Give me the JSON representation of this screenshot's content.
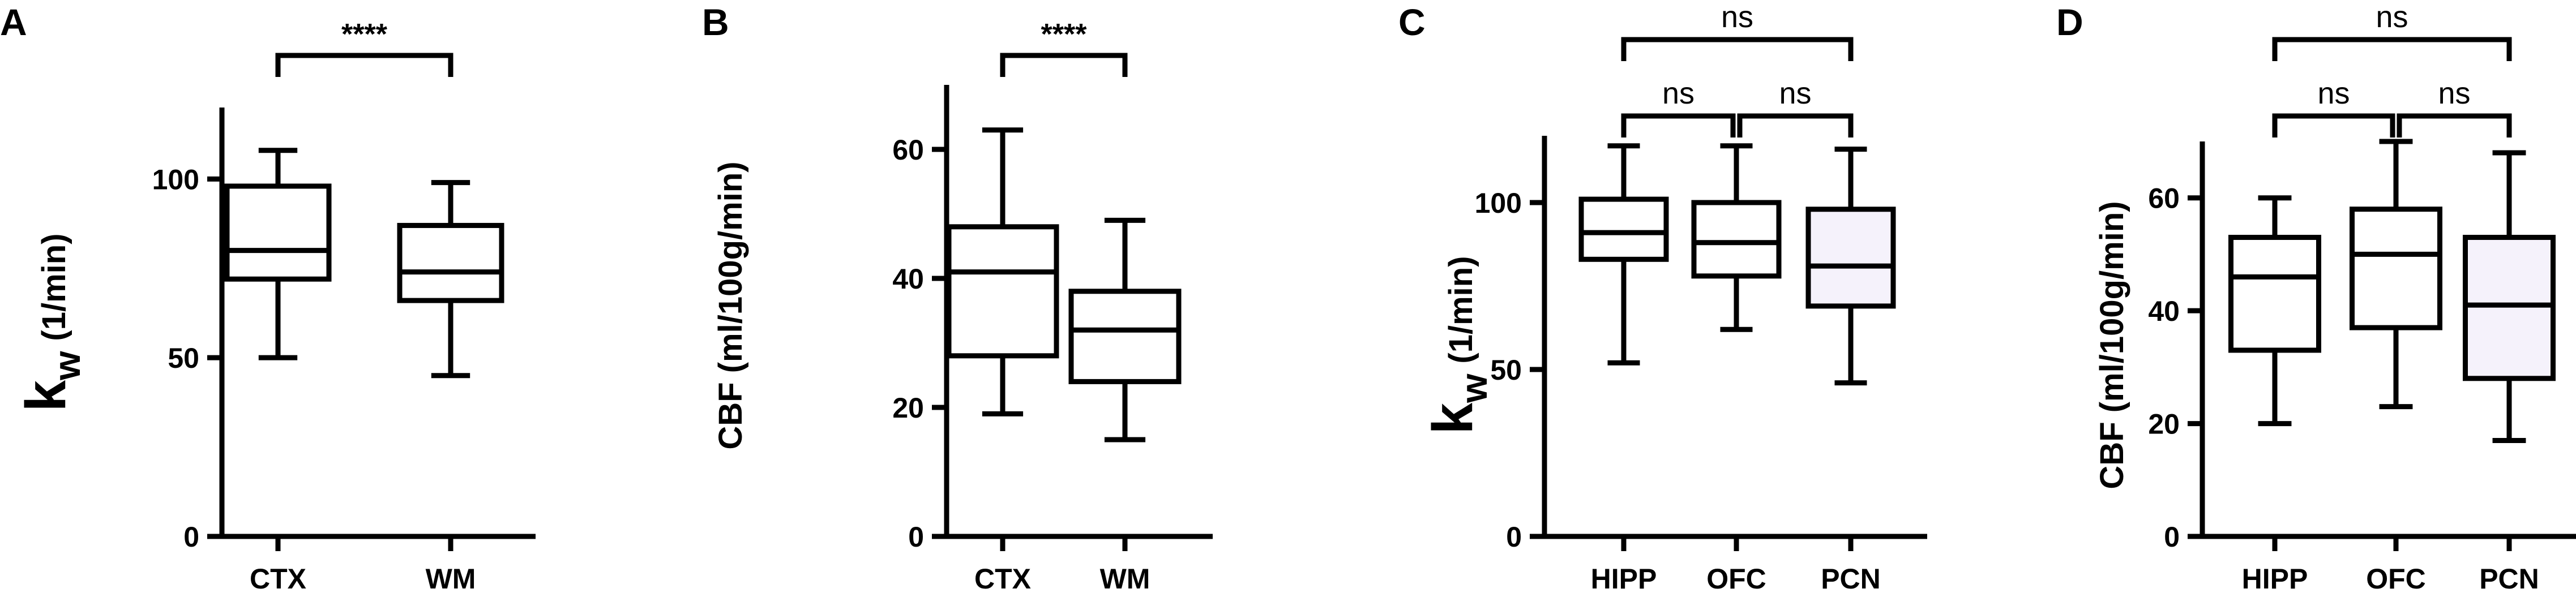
{
  "chart_data": [
    {
      "panel": "A",
      "type": "box",
      "categories": [
        "CTX",
        "WM"
      ],
      "ylabel_main": "k",
      "ylabel_sub": "w",
      "ylabel_unit": "(1/min)",
      "ylim": [
        0,
        120
      ],
      "yticks": [
        0,
        50,
        100
      ],
      "boxes": [
        {
          "min": 50,
          "q1": 72,
          "median": 80,
          "q3": 98,
          "max": 108
        },
        {
          "min": 45,
          "q1": 66,
          "median": 74,
          "q3": 87,
          "max": 99
        }
      ],
      "comparisons": [
        {
          "from": 0,
          "to": 1,
          "label": "****",
          "level": 0
        }
      ]
    },
    {
      "panel": "B",
      "type": "box",
      "categories": [
        "CTX",
        "WM"
      ],
      "ylabel": "CBF (ml/100g/min)",
      "ylim": [
        0,
        70
      ],
      "yticks": [
        0,
        20,
        40,
        60
      ],
      "boxes": [
        {
          "min": 19,
          "q1": 28,
          "median": 41,
          "q3": 48,
          "max": 63
        },
        {
          "min": 15,
          "q1": 24,
          "median": 32,
          "q3": 38,
          "max": 49
        }
      ],
      "comparisons": [
        {
          "from": 0,
          "to": 1,
          "label": "****",
          "level": 0
        }
      ]
    },
    {
      "panel": "C",
      "type": "box",
      "categories": [
        "HIPP",
        "OFC",
        "PCN"
      ],
      "ylabel_main": "k",
      "ylabel_sub": "w",
      "ylabel_unit": "(1/min)",
      "ylim": [
        0,
        120
      ],
      "yticks": [
        0,
        50,
        100
      ],
      "boxes": [
        {
          "min": 52,
          "q1": 83,
          "median": 91,
          "q3": 101,
          "max": 117
        },
        {
          "min": 62,
          "q1": 78,
          "median": 88,
          "q3": 100,
          "max": 117
        },
        {
          "min": 46,
          "q1": 69,
          "median": 81,
          "q3": 98,
          "max": 116
        }
      ],
      "comparisons": [
        {
          "from": 0,
          "to": 1,
          "label": "ns",
          "level": 0
        },
        {
          "from": 1,
          "to": 2,
          "label": "ns",
          "level": 0
        },
        {
          "from": 0,
          "to": 2,
          "label": "ns",
          "level": 1
        }
      ]
    },
    {
      "panel": "D",
      "type": "box",
      "categories": [
        "HIPP",
        "OFC",
        "PCN"
      ],
      "ylabel": "CBF (ml/100g/min)",
      "ylim": [
        0,
        70
      ],
      "yticks": [
        0,
        20,
        40,
        60
      ],
      "boxes": [
        {
          "min": 20,
          "q1": 33,
          "median": 46,
          "q3": 53,
          "max": 60
        },
        {
          "min": 23,
          "q1": 37,
          "median": 50,
          "q3": 58,
          "max": 70
        },
        {
          "min": 17,
          "q1": 28,
          "median": 41,
          "q3": 53,
          "max": 68
        }
      ],
      "comparisons": [
        {
          "from": 0,
          "to": 1,
          "label": "ns",
          "level": 0
        },
        {
          "from": 1,
          "to": 2,
          "label": "ns",
          "level": 0
        },
        {
          "from": 0,
          "to": 2,
          "label": "ns",
          "level": 1
        }
      ]
    }
  ],
  "colors": {
    "line": "#000000",
    "box_fill_a": "#ffffff",
    "box_fill_b": "#f5f2fb"
  }
}
